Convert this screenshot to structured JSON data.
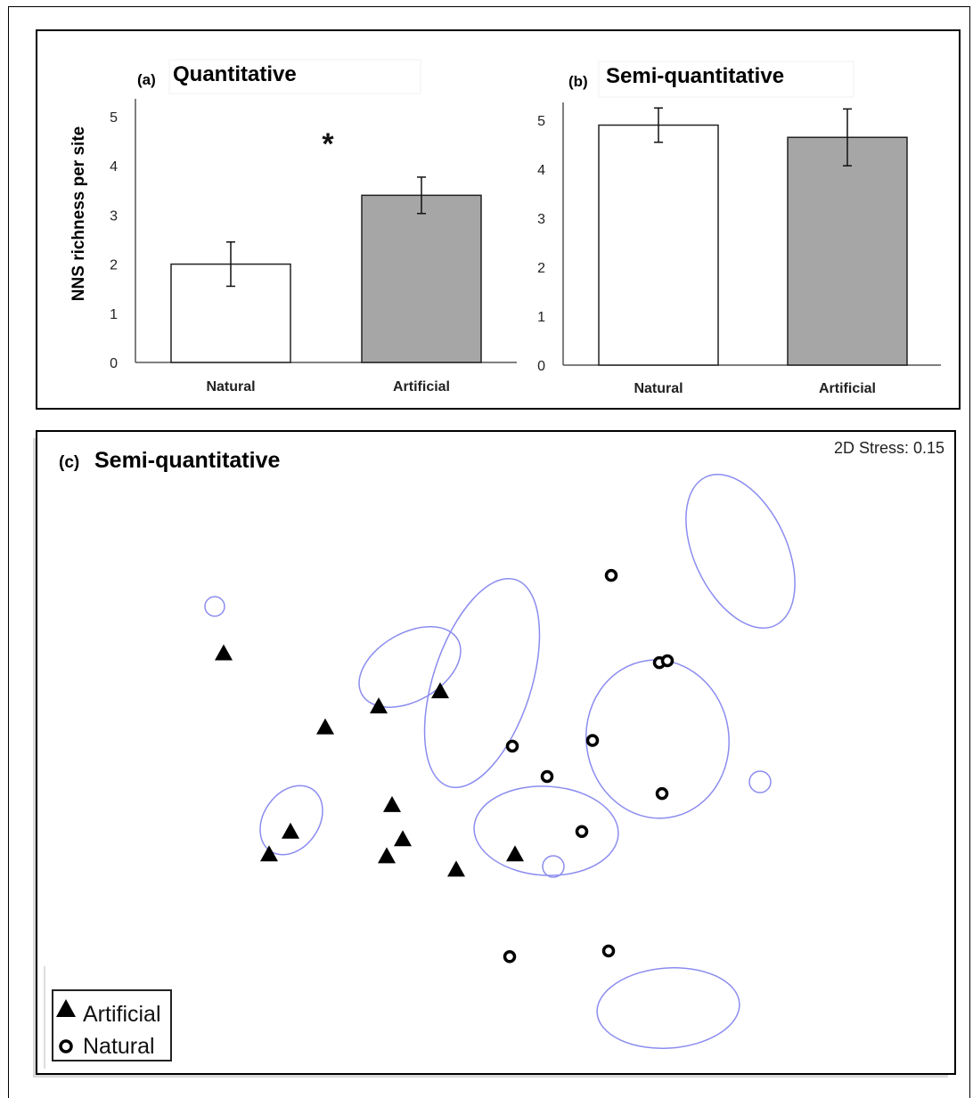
{
  "chart_data": [
    {
      "panel": "(a)",
      "title": "Quantitative",
      "type": "bar",
      "ylabel": "NNS richness per site",
      "categories": [
        "Natural",
        "Artificial"
      ],
      "values": [
        2.0,
        3.4
      ],
      "error": [
        0.45,
        0.37
      ],
      "ylim": [
        0,
        5
      ],
      "yticks": [
        "0",
        "1",
        "2",
        "3",
        "4",
        "5"
      ],
      "colors": [
        "#ffffff",
        "#a6a6a6"
      ],
      "annotation": "*"
    },
    {
      "panel": "(b)",
      "title": "Semi-quantitative",
      "type": "bar",
      "categories": [
        "Natural",
        "Artificial"
      ],
      "values": [
        4.9,
        4.65
      ],
      "error": [
        0.35,
        0.58
      ],
      "ylim": [
        0,
        5
      ],
      "yticks": [
        "0",
        "1",
        "2",
        "3",
        "4",
        "5"
      ],
      "colors": [
        "#ffffff",
        "#a6a6a6"
      ]
    },
    {
      "panel": "(c)",
      "title": "Semi-quantitative",
      "type": "scatter",
      "stress_label": "2D Stress: 0.15",
      "legend": {
        "position": "bottom-left",
        "items": [
          {
            "label": "Artificial",
            "marker": "triangle"
          },
          {
            "label": "Natural",
            "marker": "circle"
          }
        ]
      },
      "series": [
        {
          "name": "Artificial",
          "marker": "triangle",
          "points": [
            [
              -0.93,
              0.5
            ],
            [
              -0.55,
              0.11
            ],
            [
              -0.35,
              0.22
            ],
            [
              -0.12,
              0.3
            ],
            [
              -0.68,
              -0.44
            ],
            [
              -0.76,
              -0.56
            ],
            [
              -0.3,
              -0.3
            ],
            [
              -0.26,
              -0.48
            ],
            [
              -0.32,
              -0.57
            ],
            [
              -0.06,
              -0.64
            ],
            [
              0.16,
              -0.56
            ]
          ]
        },
        {
          "name": "Natural",
          "marker": "circle",
          "points": [
            [
              0.52,
              0.91
            ],
            [
              0.7,
              0.45
            ],
            [
              0.73,
              0.46
            ],
            [
              0.15,
              0.01
            ],
            [
              0.45,
              0.04
            ],
            [
              0.28,
              -0.15
            ],
            [
              0.41,
              -0.44
            ],
            [
              0.71,
              -0.24
            ],
            [
              0.14,
              -1.1
            ],
            [
              0.51,
              -1.07
            ]
          ]
        }
      ],
      "cluster_color": "#8c8cf0"
    }
  ]
}
